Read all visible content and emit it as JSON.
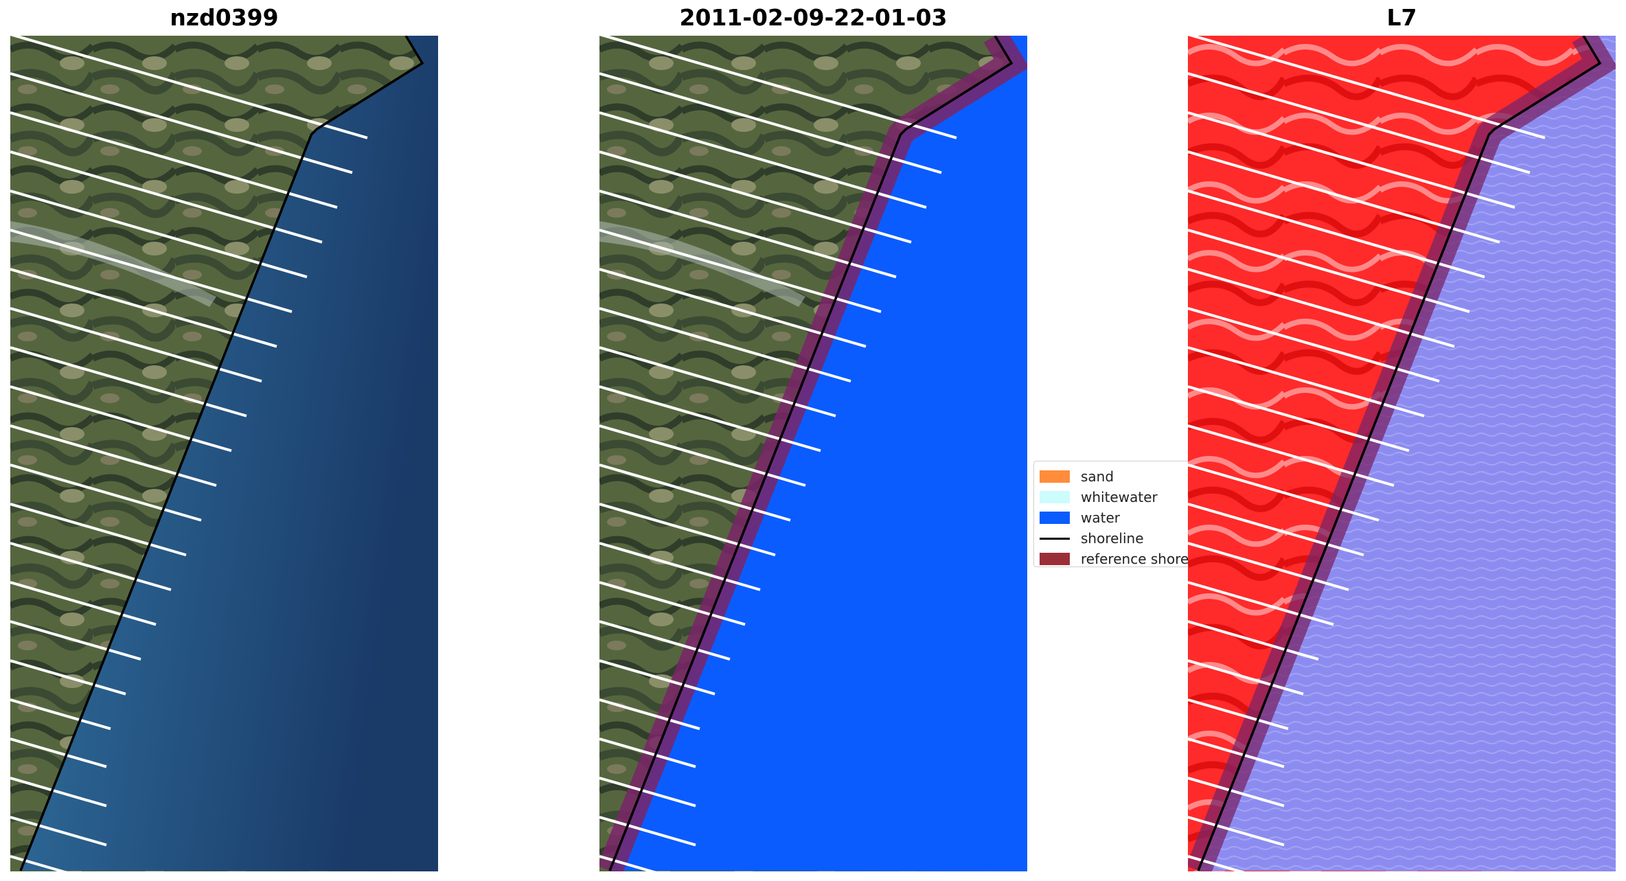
{
  "panels": [
    {
      "title": "nzd0399"
    },
    {
      "title": "2011-02-09-22-01-03"
    },
    {
      "title": "L7"
    }
  ],
  "legend": {
    "items": [
      {
        "label": "sand",
        "color": "#ff8c3a",
        "kind": "patch"
      },
      {
        "label": "whitewater",
        "color": "#ccfcfc",
        "kind": "patch"
      },
      {
        "label": "water",
        "color": "#0a5cff",
        "kind": "patch"
      },
      {
        "label": "shoreline",
        "color": "#000000",
        "kind": "line"
      },
      {
        "label": "reference shoreline",
        "color": "#9b2f38",
        "kind": "patch"
      }
    ]
  },
  "colors": {
    "land_rgb": "#5b6a4e",
    "sea_rgb": "#1f4a7a",
    "water_class": "#0a5cff",
    "land_index": "#ff2020",
    "water_index": "#8c8cf0",
    "reference_buffer": "#7a2468",
    "transect_lines": "#ffffff"
  }
}
